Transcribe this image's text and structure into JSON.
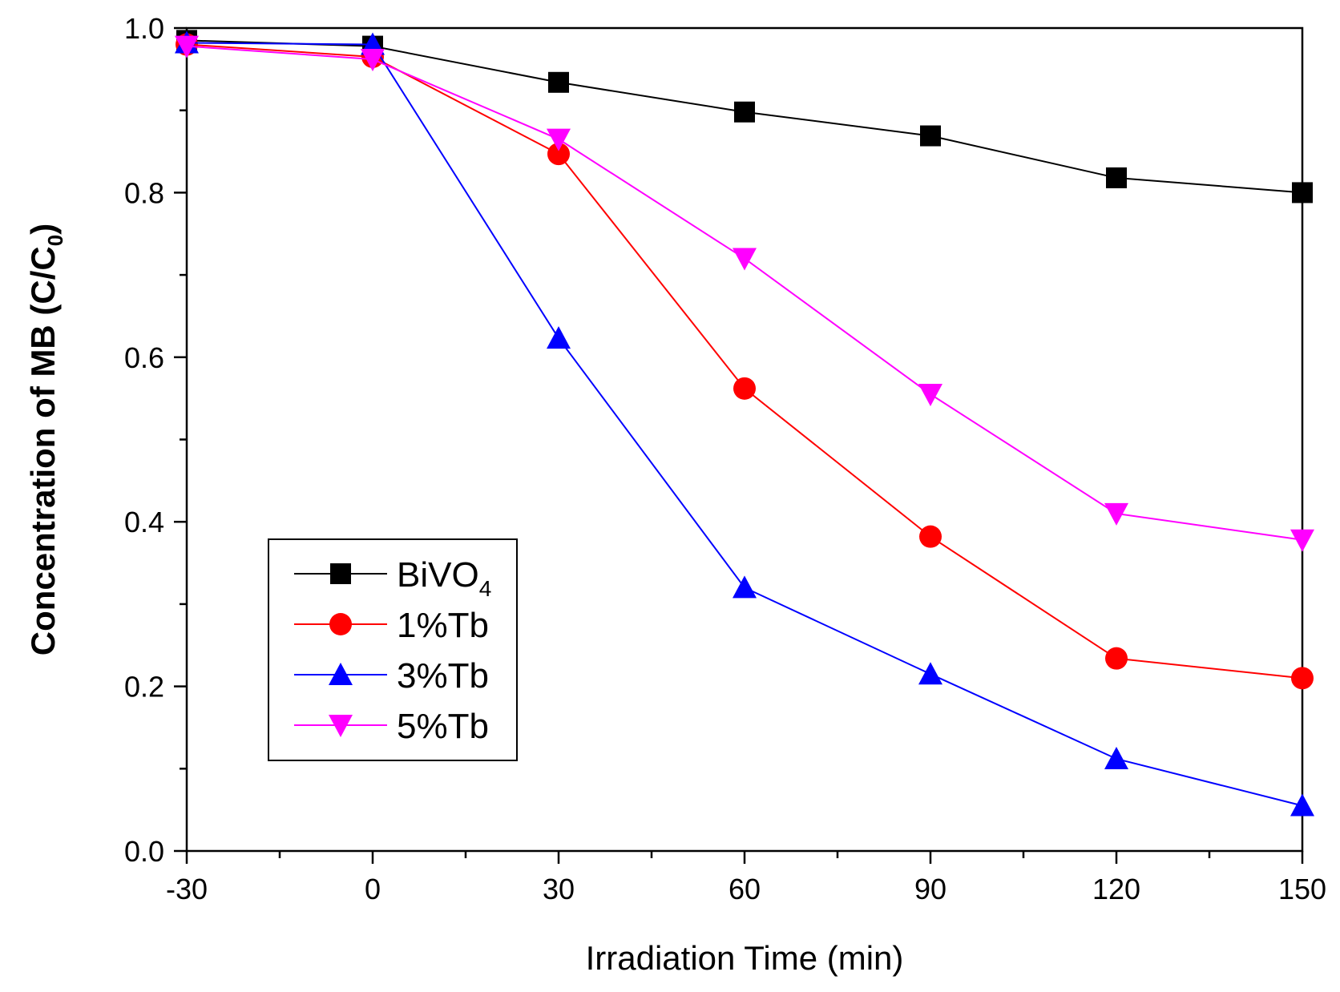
{
  "chart_data": {
    "type": "line",
    "title": "",
    "xlabel": "Irradiation Time (min)",
    "ylabel_main": "Concentration of MB (C/C",
    "ylabel_sub": "0",
    "ylabel_close": ")",
    "xlim": [
      -30,
      150
    ],
    "ylim": [
      0,
      1.0
    ],
    "xticks": [
      -30,
      0,
      30,
      60,
      90,
      120,
      150
    ],
    "xtick_labels": [
      "-30",
      "0",
      "30",
      "60",
      "90",
      "120",
      "150"
    ],
    "yticks": [
      0,
      0.2,
      0.4,
      0.6,
      0.8,
      1.0
    ],
    "ytick_labels": [
      "0.0",
      "0.2",
      "0.4",
      "0.6",
      "0.8",
      "1.0"
    ],
    "x": [
      -30,
      0,
      30,
      60,
      90,
      120,
      150
    ],
    "legend_position": "lower-left",
    "series": [
      {
        "name": "BiVO",
        "name_sub": "4",
        "color": "#000000",
        "marker": "square",
        "values": [
          0.985,
          0.978,
          0.934,
          0.898,
          0.869,
          0.818,
          0.8
        ]
      },
      {
        "name": "1%Tb",
        "name_sub": "",
        "color": "#ff0000",
        "marker": "circle",
        "values": [
          0.98,
          0.965,
          0.847,
          0.562,
          0.382,
          0.234,
          0.21
        ]
      },
      {
        "name": "3%Tb",
        "name_sub": "",
        "color": "#0000ff",
        "marker": "triangle-up",
        "values": [
          0.982,
          0.98,
          0.623,
          0.32,
          0.215,
          0.112,
          0.055
        ]
      },
      {
        "name": "5%Tb",
        "name_sub": "",
        "color": "#ff00ff",
        "marker": "triangle-down",
        "values": [
          0.978,
          0.962,
          0.865,
          0.72,
          0.555,
          0.41,
          0.378
        ]
      }
    ]
  }
}
